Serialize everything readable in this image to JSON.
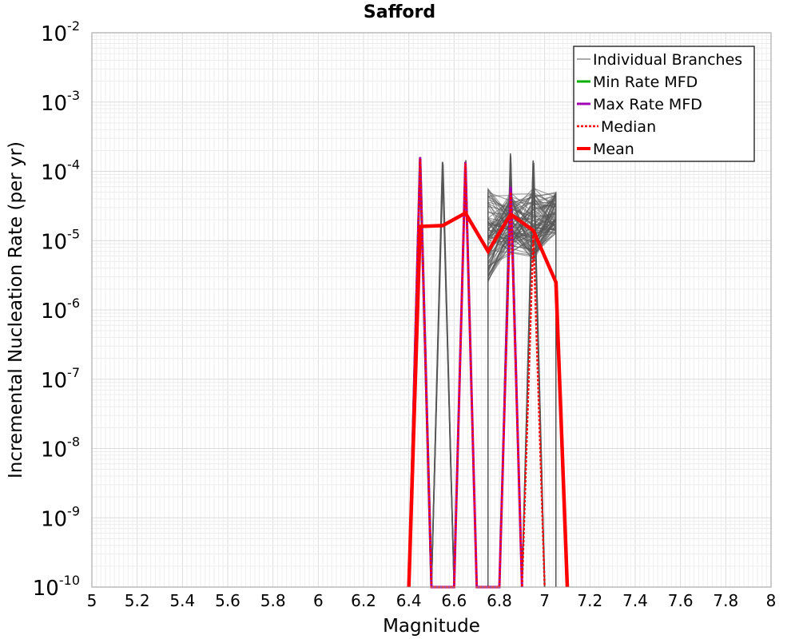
{
  "chart_data": {
    "type": "line",
    "title": "Safford",
    "xlabel": "Magnitude",
    "ylabel": "Incremental Nucleation Rate (per yr)",
    "xlim": [
      5.0,
      8.0
    ],
    "ylim": [
      1e-10,
      0.01
    ],
    "y_scale": "log",
    "x_ticks": [
      "5",
      "5.2",
      "5.4",
      "5.6",
      "5.8",
      "6",
      "6.2",
      "6.4",
      "6.6",
      "6.8",
      "7",
      "7.2",
      "7.4",
      "7.6",
      "7.8",
      "8"
    ],
    "y_ticks": [
      {
        "base": "10",
        "exp": "-10"
      },
      {
        "base": "10",
        "exp": "-9"
      },
      {
        "base": "10",
        "exp": "-8"
      },
      {
        "base": "10",
        "exp": "-7"
      },
      {
        "base": "10",
        "exp": "-6"
      },
      {
        "base": "10",
        "exp": "-5"
      },
      {
        "base": "10",
        "exp": "-4"
      },
      {
        "base": "10",
        "exp": "-3"
      },
      {
        "base": "10",
        "exp": "-2"
      }
    ],
    "grid": true,
    "legend_position": "top-right",
    "colors": {
      "individual": "#555555",
      "min": "#00b000",
      "max": "#a000b0",
      "median": "#ff0000",
      "mean": "#ff0000"
    },
    "series": [
      {
        "name": "Mean",
        "x": [
          6.4,
          6.45,
          6.55,
          6.65,
          6.75,
          6.85,
          6.95,
          7.05,
          7.1
        ],
        "y": [
          1e-10,
          1.6e-05,
          1.65e-05,
          2.5e-05,
          7e-06,
          2.4e-05,
          1.4e-05,
          2.5e-06,
          1e-10
        ]
      },
      {
        "name": "Median",
        "x": [
          6.4,
          6.45,
          6.5,
          6.6,
          6.65,
          6.7,
          6.8,
          6.85,
          6.9,
          6.95,
          7.0
        ],
        "y": [
          1e-10,
          0.00015,
          1e-10,
          1e-10,
          0.00013,
          1e-10,
          1e-10,
          5e-05,
          1e-10,
          1.2e-05,
          1e-10
        ]
      },
      {
        "name": "Max Rate MFD",
        "x": [
          6.4,
          6.45,
          6.5,
          6.6,
          6.65,
          6.7,
          6.8,
          6.85,
          6.9
        ],
        "y": [
          1e-10,
          0.00016,
          1e-10,
          1e-10,
          0.000135,
          1e-10,
          1e-10,
          6e-05,
          1e-10
        ]
      },
      {
        "name": "Min Rate MFD",
        "x": [
          6.4,
          6.45,
          6.5
        ],
        "y": [
          1e-10,
          0.00015,
          1e-10
        ]
      }
    ]
  },
  "legend": {
    "items": [
      {
        "label": "Individual Branches",
        "style": "individual"
      },
      {
        "label": "Min Rate MFD",
        "style": "min"
      },
      {
        "label": "Max Rate MFD",
        "style": "max"
      },
      {
        "label": "Median",
        "style": "median"
      },
      {
        "label": "Mean",
        "style": "mean"
      }
    ]
  }
}
